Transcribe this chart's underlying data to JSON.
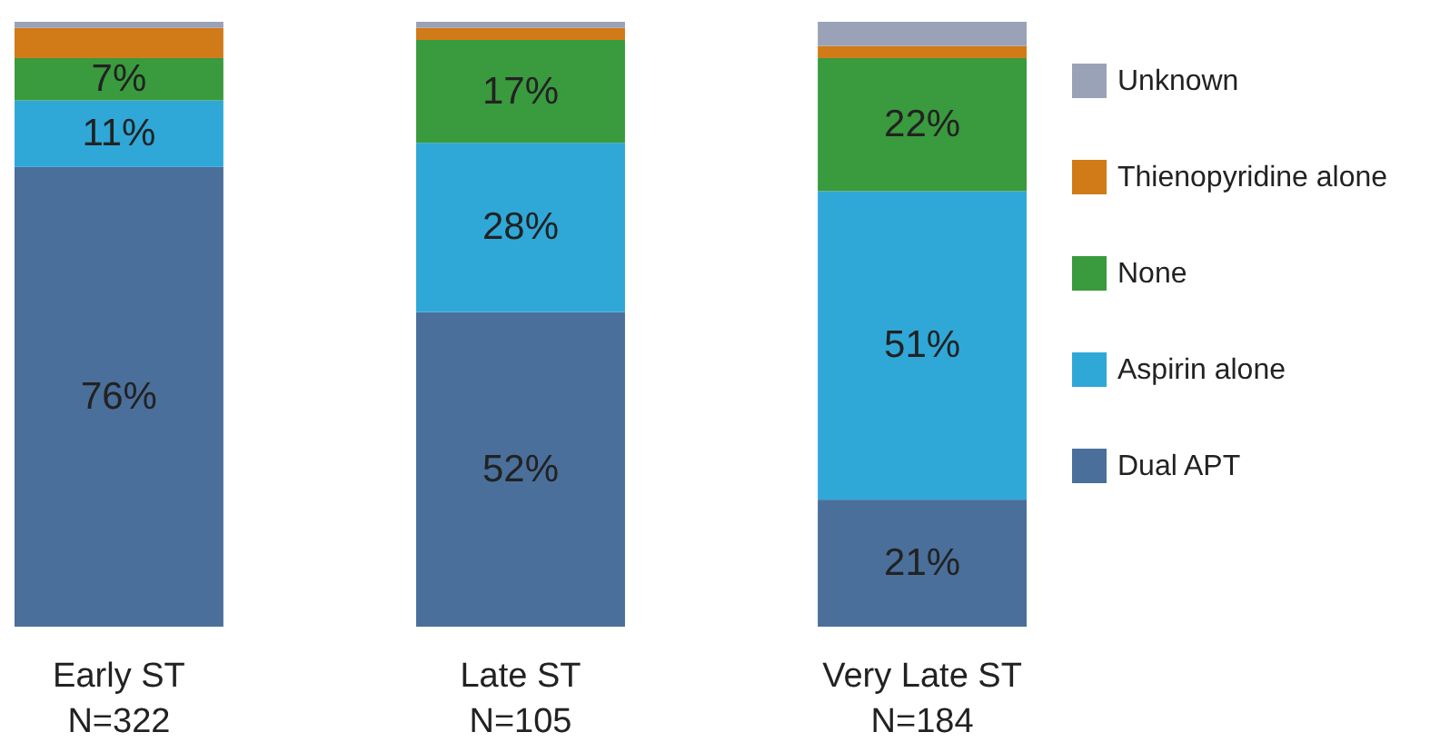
{
  "chart_data": {
    "type": "bar",
    "stacked": true,
    "categories": [
      "Early ST\nN=322",
      "Late ST\nN=105",
      "Very Late ST\nN=184"
    ],
    "ylim": [
      0,
      100
    ],
    "legend": "right",
    "tick_labels": "x",
    "series": [
      {
        "name": "Dual APT",
        "color": "#4a6f9a",
        "values": [
          76,
          52,
          21
        ],
        "value_labels": [
          "76%",
          "52%",
          "21%"
        ]
      },
      {
        "name": "Aspirin alone",
        "color": "#2fa8d8",
        "values": [
          11,
          28,
          51
        ],
        "value_labels": [
          "11%",
          "28%",
          "51%"
        ]
      },
      {
        "name": "None",
        "color": "#3a9a3e",
        "values": [
          7,
          17,
          22
        ],
        "value_labels": [
          "7%",
          "17%",
          "22%"
        ]
      },
      {
        "name": "Thienopyridine alone",
        "color": "#d07a18",
        "values": [
          5,
          2,
          2
        ],
        "value_labels": [
          null,
          null,
          null
        ]
      },
      {
        "name": "Unknown",
        "color": "#9aa2b8",
        "values": [
          1,
          1,
          4
        ],
        "value_labels": [
          null,
          null,
          null
        ]
      }
    ]
  }
}
